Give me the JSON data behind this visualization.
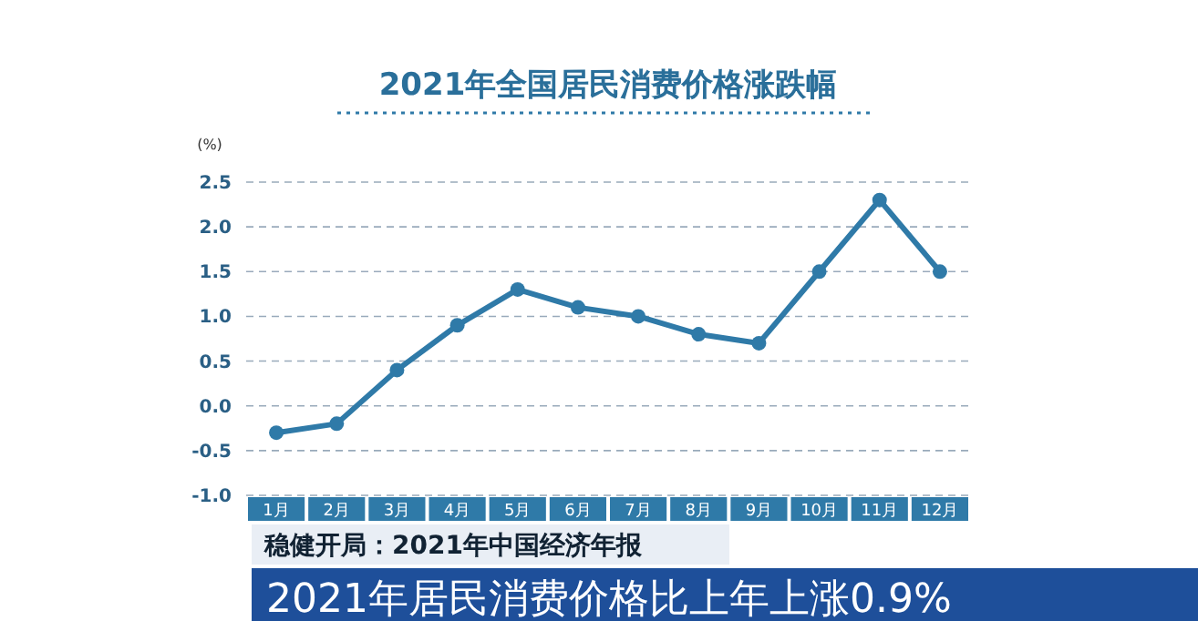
{
  "chart_data": {
    "type": "line",
    "title": "2021年全国居民消费价格涨跌幅",
    "ylabel": "(%)",
    "categories": [
      "1月",
      "2月",
      "3月",
      "4月",
      "5月",
      "6月",
      "7月",
      "8月",
      "9月",
      "10月",
      "11月",
      "12月"
    ],
    "values": [
      -0.3,
      -0.2,
      0.4,
      0.9,
      1.3,
      1.1,
      1.0,
      0.8,
      0.7,
      1.5,
      2.3,
      1.5
    ],
    "color": "#2f7aa8",
    "marker": "circle",
    "line_style": "solid",
    "grid": "y",
    "ylim": [
      -1.0,
      2.5
    ],
    "yticks": [
      {
        "value": -1,
        "label": "-1.0"
      },
      {
        "value": -0.5,
        "label": "-0.5"
      },
      {
        "value": 0,
        "label": "0.0"
      },
      {
        "value": 0.5,
        "label": "0.5"
      },
      {
        "value": 1,
        "label": "1.0"
      },
      {
        "value": 1.5,
        "label": "1.5"
      },
      {
        "value": 2,
        "label": "2.0"
      },
      {
        "value": 2.5,
        "label": "2.5"
      }
    ],
    "annotations": [
      "稳健开局：2021年中国经济年报",
      "2021年居民消费价格比上年上涨0.9%"
    ]
  }
}
